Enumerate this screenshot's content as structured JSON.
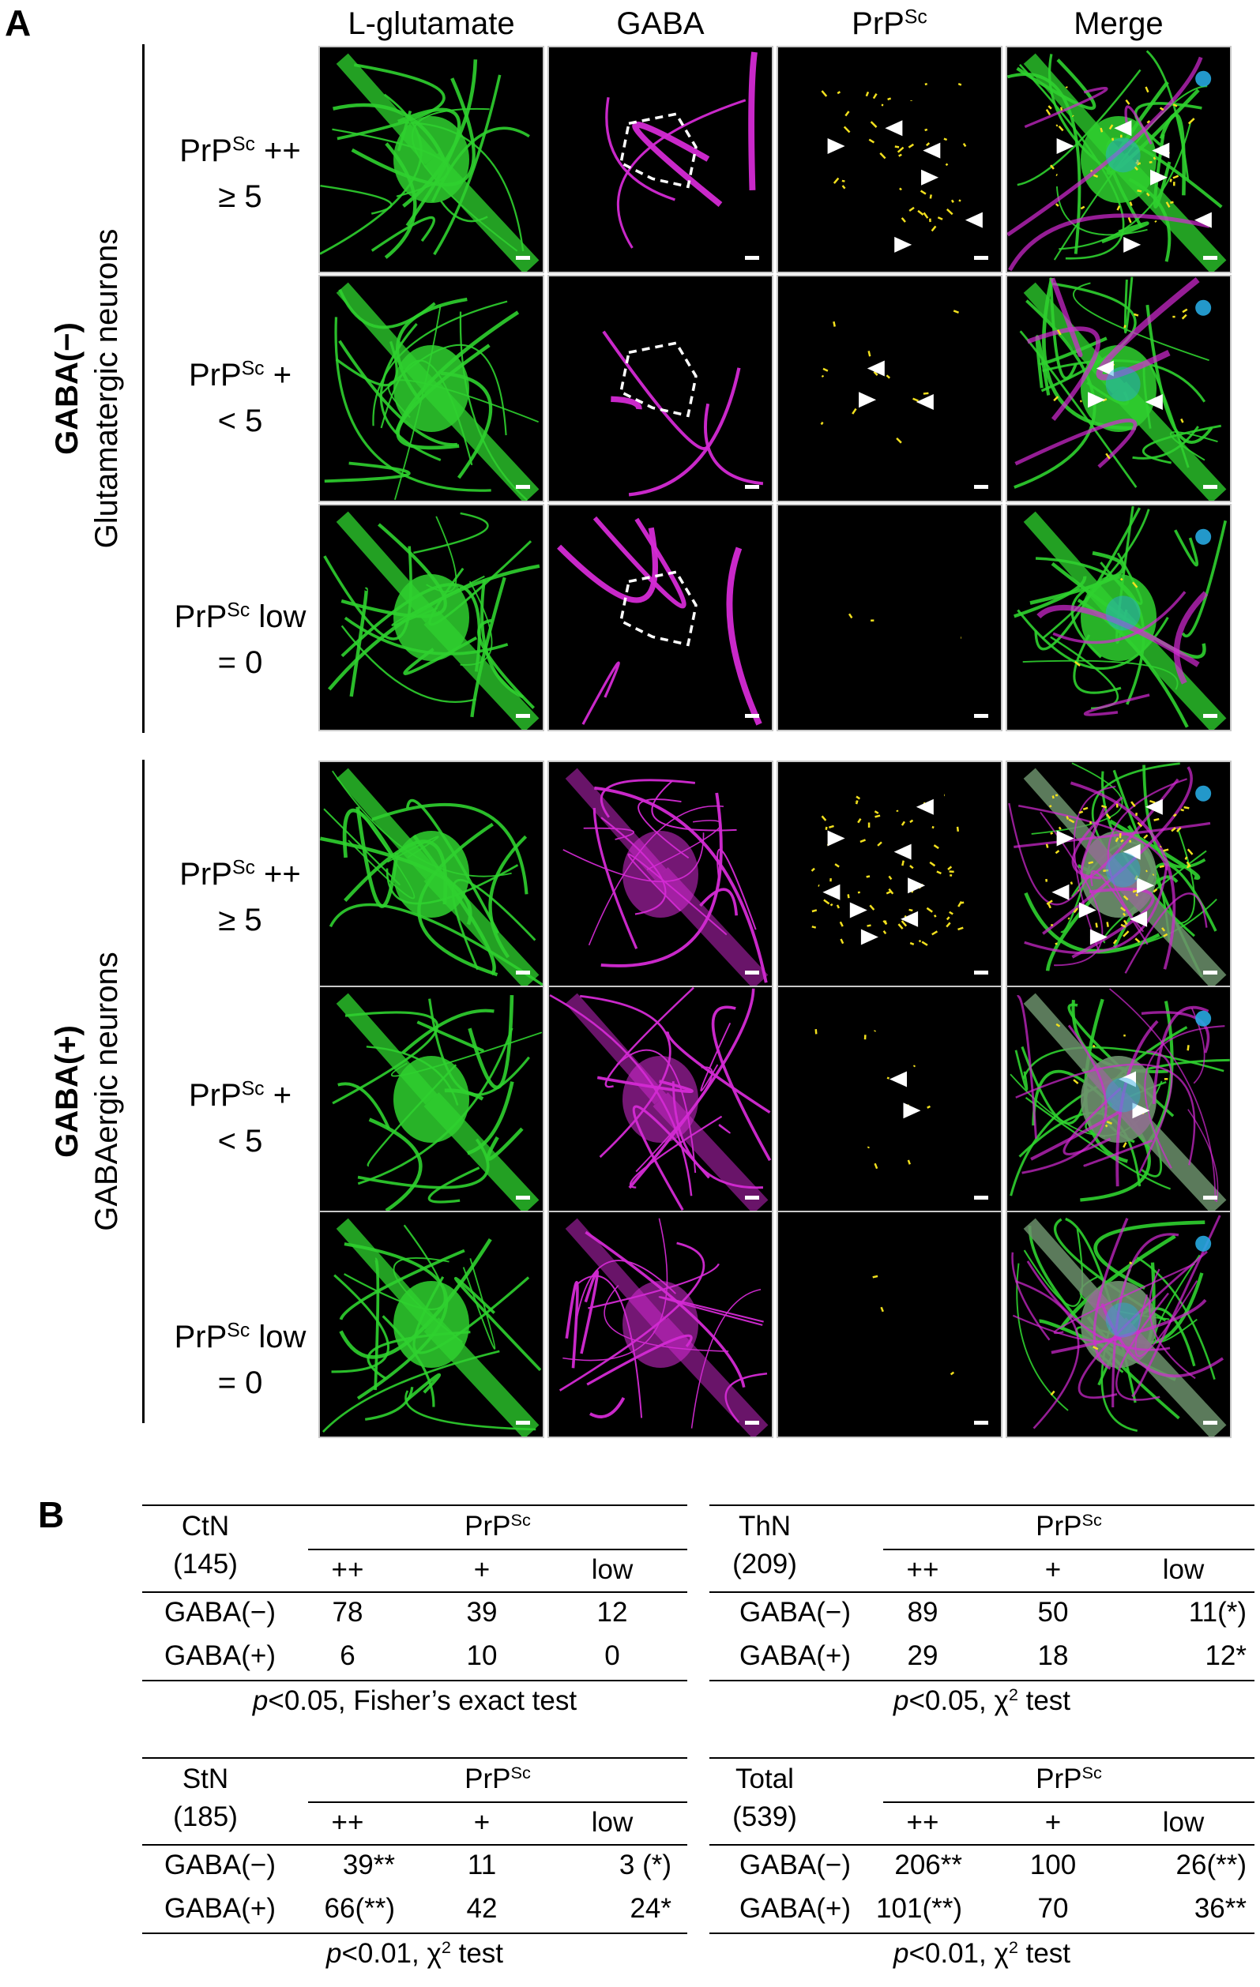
{
  "panel_a": {
    "letter": "A",
    "columns": [
      {
        "text": "L-glutamate",
        "sup": ""
      },
      {
        "text": "GABA",
        "sup": ""
      },
      {
        "text": "PrP",
        "sup": "Sc"
      },
      {
        "text": "Merge",
        "sup": ""
      }
    ],
    "groups": [
      {
        "bold": "GABA(−)",
        "name": "Glutamatergic neurons",
        "rows": [
          {
            "prefix": "PrP",
            "sup": "Sc",
            "suffix": " ++",
            "line2": "≥ 5"
          },
          {
            "prefix": "PrP",
            "sup": "Sc",
            "suffix": " +",
            "line2": "< 5"
          },
          {
            "prefix": "PrP",
            "sup": "Sc",
            "suffix": " low",
            "line2": "= 0"
          }
        ]
      },
      {
        "bold": "GABA(+)",
        "name": "GABAergic neurons",
        "rows": [
          {
            "prefix": "PrP",
            "sup": "Sc",
            "suffix": " ++",
            "line2": "≥ 5"
          },
          {
            "prefix": "PrP",
            "sup": "Sc",
            "suffix": " +",
            "line2": "< 5"
          },
          {
            "prefix": "PrP",
            "sup": "Sc",
            "suffix": " low",
            "line2": "= 0"
          }
        ]
      }
    ],
    "colors": {
      "glutamate": "#2fd12f",
      "gaba": "#d42ad4",
      "prpsc": "#f2e01e",
      "nucleus": "#27a9e0",
      "arrow": "#ffffff"
    }
  },
  "panel_b": {
    "letter": "B",
    "tables": [
      {
        "region": "CtN",
        "count": "(145)",
        "header": {
          "prefix": "PrP",
          "sup": "Sc"
        },
        "subheaders": [
          "++",
          "+",
          "low"
        ],
        "rows": [
          {
            "label": "GABA(−)",
            "cells": [
              "78",
              "39",
              "12"
            ]
          },
          {
            "label": "GABA(+)",
            "cells": [
              "6",
              "10",
              "0"
            ]
          }
        ],
        "test": {
          "p": "p",
          "text": "<0.05, Fisher’s exact test",
          "sup": "",
          "after": ""
        }
      },
      {
        "region": "ThN",
        "count": "(209)",
        "header": {
          "prefix": "PrP",
          "sup": "Sc"
        },
        "subheaders": [
          "++",
          "+",
          "low"
        ],
        "rows": [
          {
            "label": "GABA(−)",
            "cells": [
              "89",
              "50",
              "11(*)"
            ]
          },
          {
            "label": "GABA(+)",
            "cells": [
              "29",
              "18",
              "12*"
            ]
          }
        ],
        "test": {
          "p": "p",
          "text": "<0.05, χ",
          "sup": "2",
          "after": " test"
        }
      },
      {
        "region": "StN",
        "count": "(185)",
        "header": {
          "prefix": "PrP",
          "sup": "Sc"
        },
        "subheaders": [
          "++",
          "+",
          "low"
        ],
        "rows": [
          {
            "label": "GABA(−)",
            "cells": [
              "39**",
              "11",
              "3 (*)"
            ]
          },
          {
            "label": "GABA(+)",
            "cells": [
              "66(**)",
              "42",
              "24*"
            ]
          }
        ],
        "test": {
          "p": "p",
          "text": "<0.01, χ",
          "sup": "2",
          "after": " test"
        }
      },
      {
        "region": "Total",
        "count": "(539)",
        "header": {
          "prefix": "PrP",
          "sup": "Sc"
        },
        "subheaders": [
          "++",
          "+",
          "low"
        ],
        "rows": [
          {
            "label": "GABA(−)",
            "cells": [
              "206**",
              "100",
              "26(**)"
            ]
          },
          {
            "label": "GABA(+)",
            "cells": [
              "101(**)",
              "70",
              "36**"
            ]
          }
        ],
        "test": {
          "p": "p",
          "text": "<0.01, χ",
          "sup": "2",
          "after": " test"
        }
      }
    ]
  }
}
